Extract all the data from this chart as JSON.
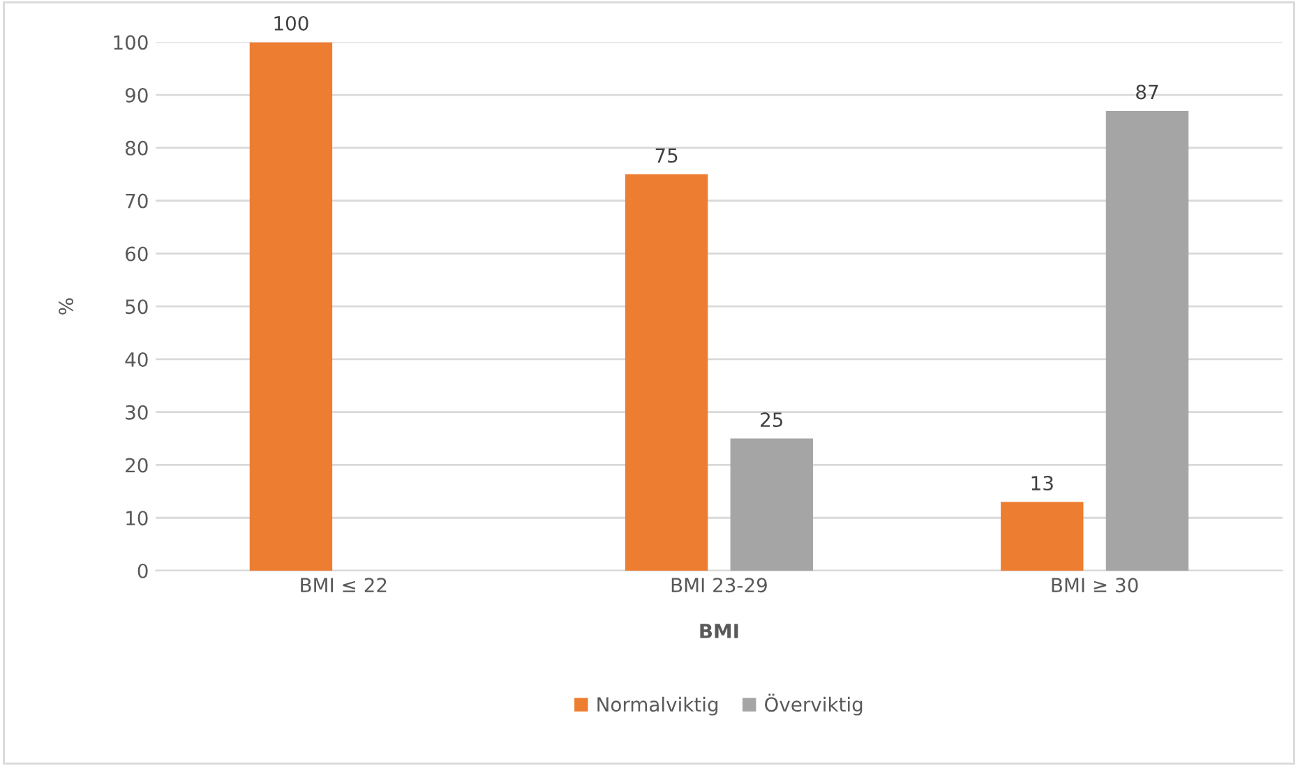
{
  "chart_data": {
    "type": "bar",
    "xlabel": "BMI",
    "ylabel": "%",
    "categories": [
      "BMI ≤ 22",
      "BMI 23-29",
      "BMI ≥ 30"
    ],
    "series": [
      {
        "name": "Normalviktig",
        "color": "#ed7d31",
        "values": [
          100,
          75,
          13
        ]
      },
      {
        "name": "Överviktig",
        "color": "#a5a5a5",
        "values": [
          null,
          25,
          87
        ]
      }
    ],
    "ylim": [
      0,
      100
    ],
    "yticks": [
      0,
      10,
      20,
      30,
      40,
      50,
      60,
      70,
      80,
      90,
      100
    ],
    "grid": "y",
    "legend": "bottom",
    "data_labels": true
  }
}
